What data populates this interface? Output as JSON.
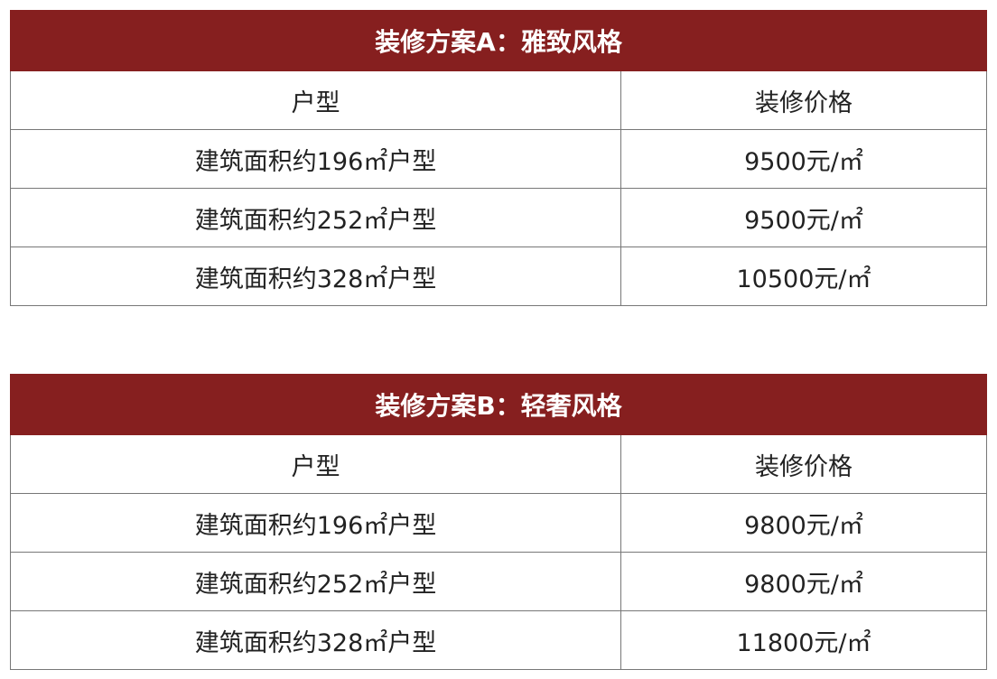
{
  "tables": [
    {
      "title": "装修方案A：雅致风格",
      "headers": [
        "户型",
        "装修价格"
      ],
      "rows": [
        [
          "建筑面积约196㎡户型",
          "9500元/㎡"
        ],
        [
          "建筑面积约252㎡户型",
          "9500元/㎡"
        ],
        [
          "建筑面积约328㎡户型",
          "10500元/㎡"
        ]
      ]
    },
    {
      "title": "装修方案B：轻奢风格",
      "headers": [
        "户型",
        "装修价格"
      ],
      "rows": [
        [
          "建筑面积约196㎡户型",
          "9800元/㎡"
        ],
        [
          "建筑面积约252㎡户型",
          "9800元/㎡"
        ],
        [
          "建筑面积约328㎡户型",
          "11800元/㎡"
        ]
      ]
    }
  ],
  "colors": {
    "header_bg": "#861f1f",
    "header_text": "#ffffff"
  }
}
